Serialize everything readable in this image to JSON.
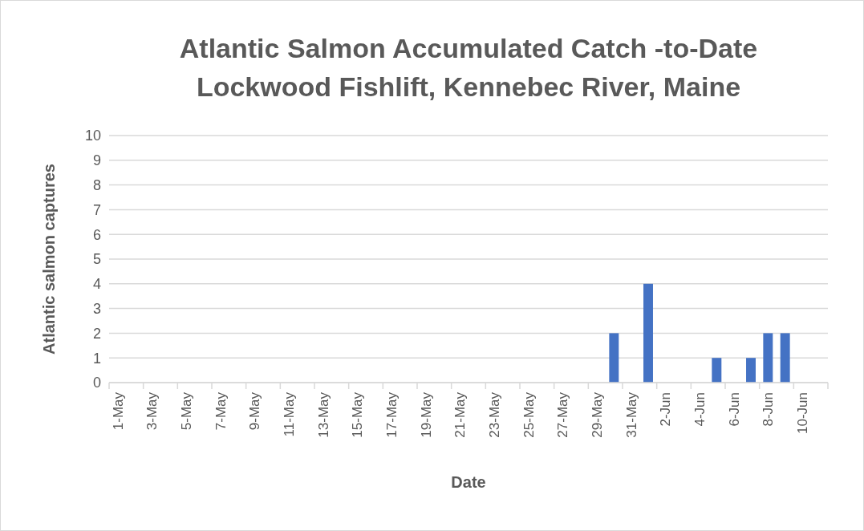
{
  "chart_data": {
    "type": "bar",
    "title": "Atlantic Salmon Accumulated Catch -to-Date\nLockwood Fishlift, Kennebec River, Maine",
    "xlabel": "Date",
    "ylabel": "Atlantic salmon captures",
    "categories": [
      "1-May",
      null,
      "3-May",
      null,
      "5-May",
      null,
      "7-May",
      null,
      "9-May",
      null,
      "11-May",
      null,
      "13-May",
      null,
      "15-May",
      null,
      "17-May",
      null,
      "19-May",
      null,
      "21-May",
      null,
      "23-May",
      null,
      "25-May",
      null,
      "27-May",
      null,
      "29-May",
      null,
      "31-May",
      null,
      "2-Jun",
      null,
      "4-Jun",
      null,
      "6-Jun",
      null,
      "8-Jun",
      null,
      "10-Jun",
      null
    ],
    "values": [
      0,
      0,
      0,
      0,
      0,
      0,
      0,
      0,
      0,
      0,
      0,
      0,
      0,
      0,
      0,
      0,
      0,
      0,
      0,
      0,
      0,
      0,
      0,
      0,
      0,
      0,
      0,
      0,
      0,
      2,
      0,
      4,
      0,
      0,
      0,
      1,
      0,
      1,
      2,
      2,
      0,
      0
    ],
    "color": "#4472c4",
    "ylim": [
      0,
      10
    ],
    "yticks": [
      0,
      1,
      2,
      3,
      4,
      5,
      6,
      7,
      8,
      9,
      10
    ],
    "grid": "y"
  }
}
